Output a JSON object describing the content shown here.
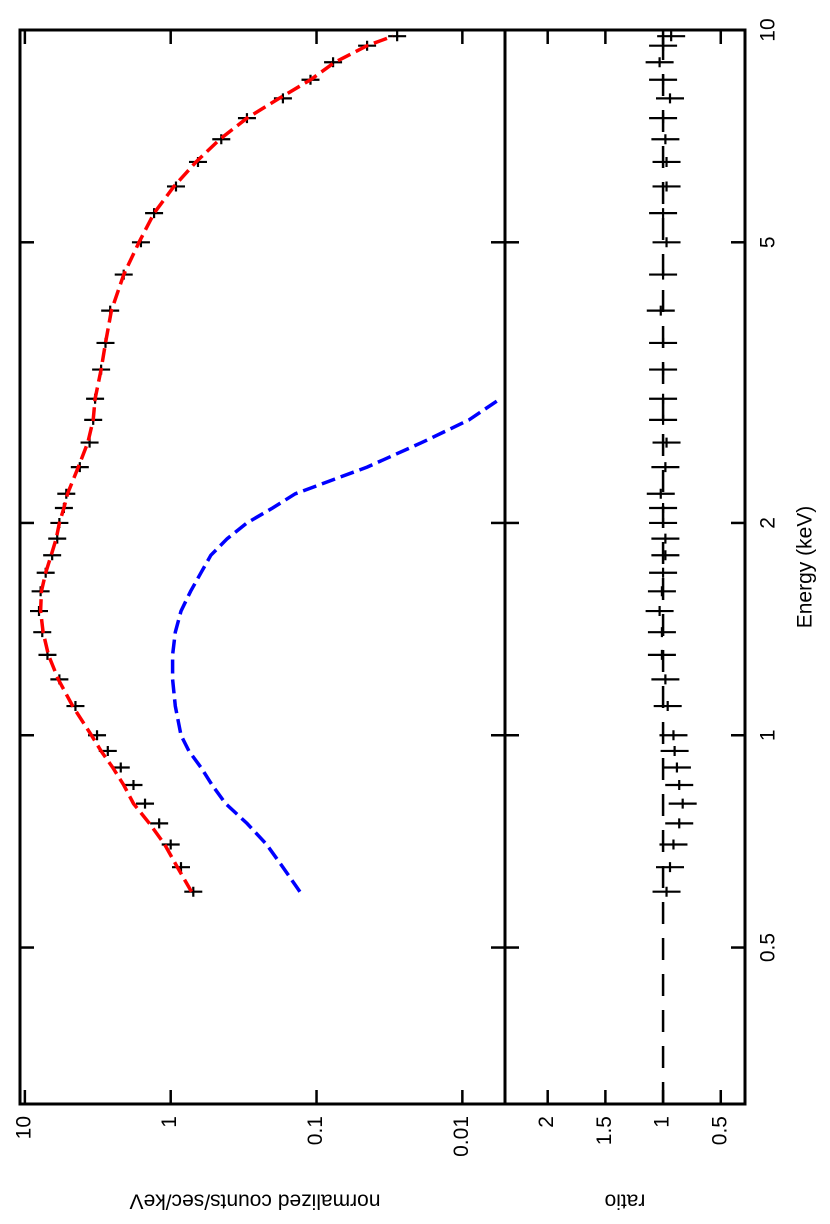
{
  "chart_data": {
    "type": "scatter",
    "xlabel": "Energy (keV)",
    "xlog": true,
    "xlim": [
      0.3,
      10
    ],
    "xticks": [
      0.5,
      1,
      2,
      5,
      10
    ],
    "x": [
      0.6,
      0.65,
      0.7,
      0.75,
      0.8,
      0.85,
      0.9,
      0.95,
      1.0,
      1.1,
      1.2,
      1.3,
      1.4,
      1.5,
      1.6,
      1.7,
      1.8,
      1.9,
      2.0,
      2.1,
      2.2,
      2.4,
      2.6,
      2.8,
      3.0,
      3.3,
      3.6,
      4.0,
      4.5,
      5.0,
      5.5,
      6.0,
      6.5,
      7.0,
      7.5,
      8.0,
      8.5,
      9.0,
      9.5,
      9.8
    ],
    "panels": [
      {
        "ylabel": "normalized counts/sec/keV",
        "ylog": true,
        "ylim": [
          0.0051,
          10.8
        ],
        "yticks": [
          10,
          1,
          0.1,
          0.01
        ],
        "series": [
          {
            "color": "#000000",
            "mode": "markers",
            "values": [
              0.7,
              0.85,
              1.0,
              1.2,
              1.5,
              1.8,
              2.2,
              2.7,
              3.2,
              4.5,
              5.8,
              7.0,
              7.6,
              8.0,
              7.8,
              7.2,
              6.5,
              6.0,
              5.8,
              5.4,
              5.2,
              4.2,
              3.6,
              3.4,
              3.3,
              3.0,
              2.8,
              2.6,
              2.1,
              1.6,
              1.3,
              0.92,
              0.65,
              0.45,
              0.3,
              0.17,
              0.11,
              0.077,
              0.045,
              0.028
            ]
          },
          {
            "color": "#ff0000",
            "mode": "dashed",
            "values": [
              0.72,
              0.9,
              1.1,
              1.4,
              1.8,
              2.1,
              2.5,
              3.0,
              3.5,
              4.7,
              5.9,
              6.9,
              7.5,
              7.8,
              7.7,
              7.2,
              6.6,
              6.1,
              5.8,
              5.4,
              5.1,
              4.3,
              3.7,
              3.4,
              3.3,
              3.0,
              2.8,
              2.55,
              2.1,
              1.65,
              1.3,
              0.95,
              0.67,
              0.46,
              0.3,
              0.18,
              0.11,
              0.075,
              0.045,
              0.03
            ]
          },
          {
            "color": "#0000ff",
            "mode": "dashed",
            "values": [
              0.13,
              0.17,
              0.22,
              0.3,
              0.42,
              0.52,
              0.62,
              0.75,
              0.85,
              0.93,
              0.97,
              0.97,
              0.93,
              0.85,
              0.73,
              0.62,
              0.53,
              0.41,
              0.3,
              0.2,
              0.14,
              0.045,
              0.019,
              0.009,
              0.0055,
              null,
              null,
              null,
              null,
              null,
              null,
              null,
              null,
              null,
              null,
              null,
              null,
              null,
              null,
              null
            ]
          }
        ]
      },
      {
        "ylabel": "ratio",
        "ylog": false,
        "ylim": [
          0.29,
          2.37
        ],
        "yticks": [
          0.5,
          1,
          1.5,
          2
        ],
        "reference_line": 1,
        "series": [
          {
            "color": "#000000",
            "mode": "markers",
            "values": [
              0.97,
              0.94,
              0.91,
              0.86,
              0.83,
              0.86,
              0.88,
              0.9,
              0.91,
              0.96,
              0.98,
              1.01,
              1.01,
              1.03,
              1.01,
              1.0,
              0.98,
              0.98,
              1.0,
              1.0,
              1.02,
              0.98,
              0.97,
              1.0,
              1.0,
              1.0,
              1.0,
              1.02,
              1.0,
              0.97,
              1.0,
              0.97,
              0.97,
              0.98,
              1.0,
              0.94,
              1.0,
              1.03,
              1.0,
              0.93
            ]
          }
        ]
      }
    ]
  }
}
